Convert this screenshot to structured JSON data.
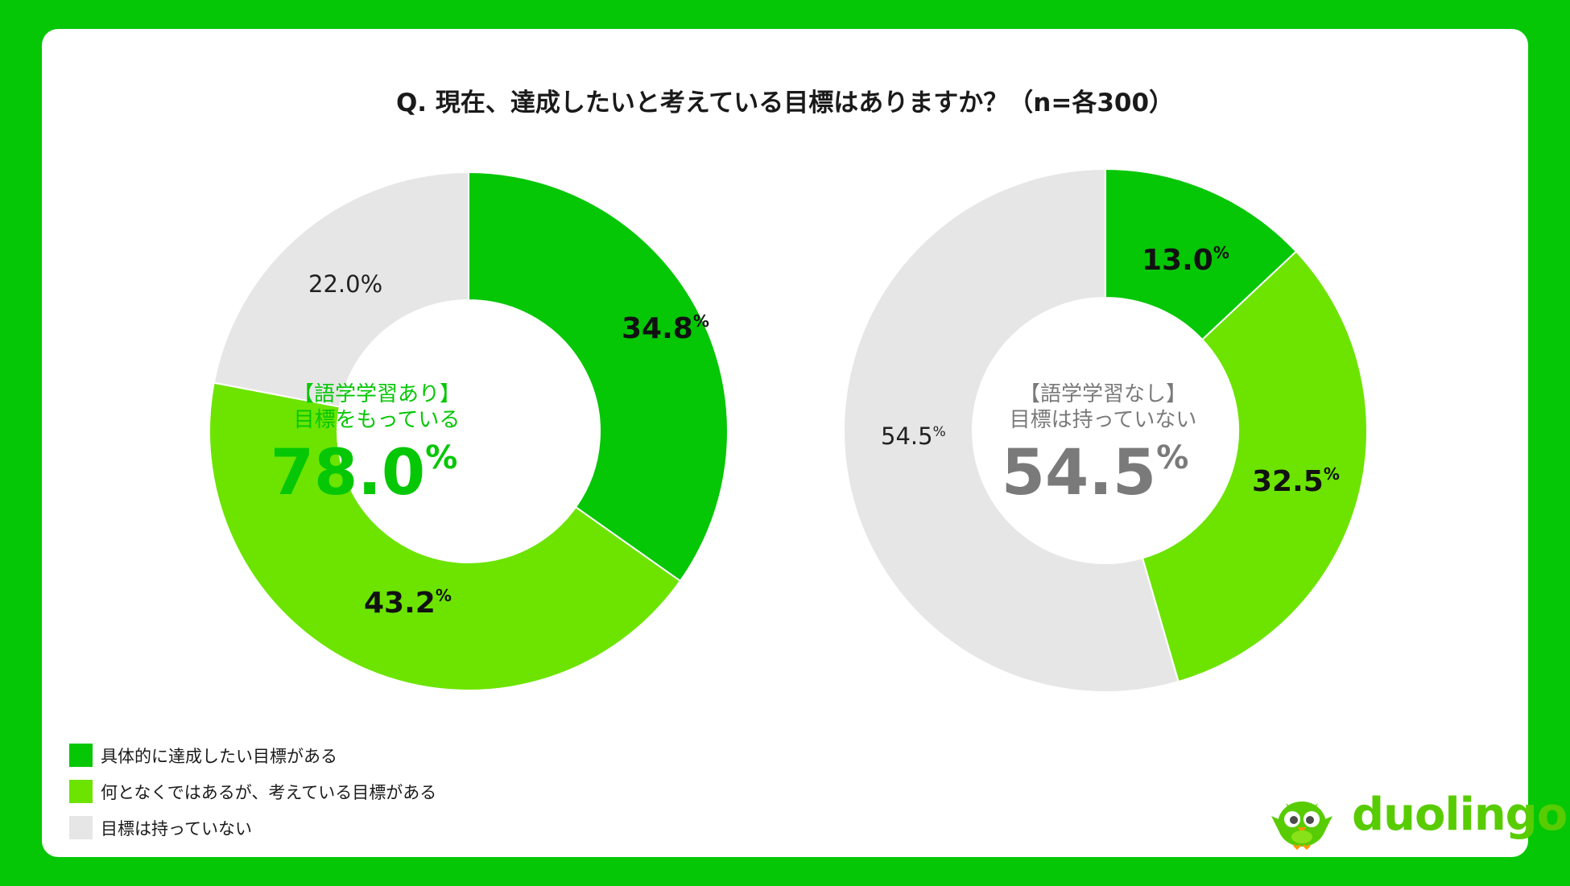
{
  "title": "Q. 現在、達成したいと考えている目標はありますか？（n=各300）",
  "colors": {
    "specific": "#05c705",
    "vague": "#6ce400",
    "none": "#e6e6e6",
    "center_left": "#05c705",
    "center_right": "#7a7a7a"
  },
  "legend": [
    {
      "label": "具体的に達成したい目標がある",
      "color": "#05c705"
    },
    {
      "label": "何となくではあるが、考えている目標がある",
      "color": "#6ce400"
    },
    {
      "label": "目標は持っていない",
      "color": "#e6e6e6"
    }
  ],
  "chart_data": [
    {
      "type": "pie",
      "categories": [
        "具体的に達成したい目標がある",
        "何となくではあるが、考えている目標がある",
        "目標は持っていない"
      ],
      "values": [
        34.8,
        43.2,
        22.0
      ],
      "labels": [
        "34.8",
        "43.2",
        "22.0%"
      ],
      "center_heading_1": "【語学学習あり】",
      "center_heading_2": "目標をもっている",
      "center_value": "78.0",
      "percent_sign": "%"
    },
    {
      "type": "pie",
      "categories": [
        "具体的に達成したい目標がある",
        "何となくではあるが、考えている目標がある",
        "目標は持っていない"
      ],
      "values": [
        13.0,
        32.5,
        54.5
      ],
      "labels": [
        "13.0",
        "32.5",
        "54.5"
      ],
      "center_heading_1": "【語学学習なし】",
      "center_heading_2": "目標は持っていない",
      "center_value": "54.5",
      "percent_sign": "%"
    }
  ],
  "brand": "duolingo"
}
